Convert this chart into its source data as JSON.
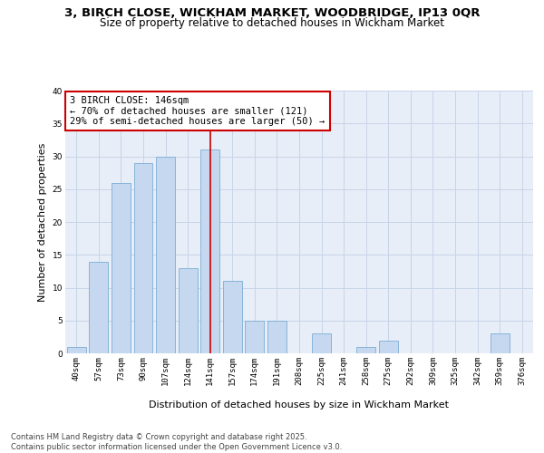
{
  "title1": "3, BIRCH CLOSE, WICKHAM MARKET, WOODBRIDGE, IP13 0QR",
  "title2": "Size of property relative to detached houses in Wickham Market",
  "xlabel": "Distribution of detached houses by size in Wickham Market",
  "ylabel": "Number of detached properties",
  "bar_color": "#c5d8f0",
  "bar_edge_color": "#7aadd4",
  "categories": [
    "40sqm",
    "57sqm",
    "73sqm",
    "90sqm",
    "107sqm",
    "124sqm",
    "141sqm",
    "157sqm",
    "174sqm",
    "191sqm",
    "208sqm",
    "225sqm",
    "241sqm",
    "258sqm",
    "275sqm",
    "292sqm",
    "309sqm",
    "325sqm",
    "342sqm",
    "359sqm",
    "376sqm"
  ],
  "values": [
    1,
    14,
    26,
    29,
    30,
    13,
    31,
    11,
    5,
    5,
    0,
    3,
    0,
    1,
    2,
    0,
    0,
    0,
    0,
    3,
    0
  ],
  "vline_index": 6,
  "vline_color": "#cc0000",
  "annotation_text": "3 BIRCH CLOSE: 146sqm\n← 70% of detached houses are smaller (121)\n29% of semi-detached houses are larger (50) →",
  "annotation_box_color": "#ffffff",
  "annotation_box_edge": "#cc0000",
  "ylim": [
    0,
    40
  ],
  "yticks": [
    0,
    5,
    10,
    15,
    20,
    25,
    30,
    35,
    40
  ],
  "grid_color": "#c8d4e8",
  "bg_color": "#e8eef8",
  "footer_text": "Contains HM Land Registry data © Crown copyright and database right 2025.\nContains public sector information licensed under the Open Government Licence v3.0.",
  "title_fontsize": 9.5,
  "subtitle_fontsize": 8.5,
  "tick_fontsize": 6.5,
  "ylabel_fontsize": 8,
  "xlabel_fontsize": 8,
  "annotation_fontsize": 7.5,
  "footer_fontsize": 6
}
